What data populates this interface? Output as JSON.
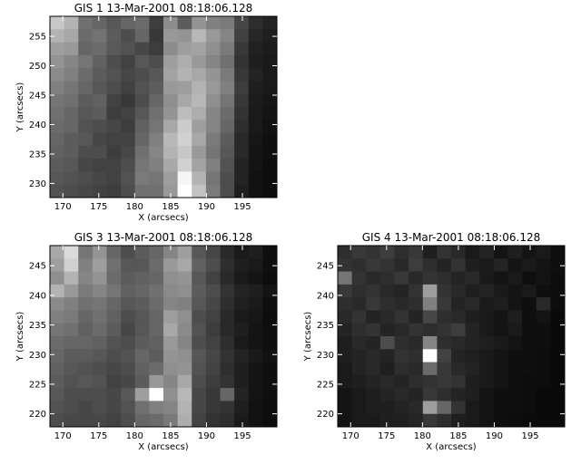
{
  "chart_data": [
    {
      "type": "heatmap",
      "title": "GIS 1 13-Mar-2001 08:18:06.128",
      "xlabel": "X (arcsecs)",
      "ylabel": "Y (arcsecs)",
      "xlim": [
        168.2,
        199.8
      ],
      "ylim": [
        227.6,
        258.4
      ],
      "x_ticks": [
        170,
        175,
        180,
        185,
        190,
        195
      ],
      "y_ticks": [
        230,
        235,
        240,
        245,
        250,
        255
      ],
      "colormap": "grayscale",
      "grid": false,
      "rows": 14,
      "cols": 16,
      "intensity": [
        [
          0.78,
          0.7,
          0.44,
          0.4,
          0.34,
          0.4,
          0.42,
          0.24,
          0.55,
          0.36,
          0.58,
          0.5,
          0.48,
          0.28,
          0.18,
          0.14
        ],
        [
          0.7,
          0.66,
          0.42,
          0.45,
          0.36,
          0.3,
          0.4,
          0.22,
          0.6,
          0.58,
          0.72,
          0.6,
          0.52,
          0.25,
          0.15,
          0.12
        ],
        [
          0.62,
          0.6,
          0.4,
          0.42,
          0.35,
          0.32,
          0.28,
          0.24,
          0.55,
          0.62,
          0.64,
          0.56,
          0.48,
          0.22,
          0.13,
          0.11
        ],
        [
          0.58,
          0.52,
          0.46,
          0.38,
          0.3,
          0.26,
          0.34,
          0.3,
          0.62,
          0.68,
          0.6,
          0.52,
          0.44,
          0.2,
          0.12,
          0.1
        ],
        [
          0.54,
          0.5,
          0.42,
          0.36,
          0.32,
          0.28,
          0.3,
          0.34,
          0.64,
          0.7,
          0.66,
          0.58,
          0.48,
          0.22,
          0.14,
          0.1
        ],
        [
          0.5,
          0.46,
          0.4,
          0.34,
          0.3,
          0.26,
          0.32,
          0.36,
          0.6,
          0.62,
          0.7,
          0.6,
          0.5,
          0.24,
          0.12,
          0.1
        ],
        [
          0.46,
          0.44,
          0.36,
          0.38,
          0.26,
          0.22,
          0.3,
          0.4,
          0.56,
          0.66,
          0.72,
          0.56,
          0.46,
          0.22,
          0.11,
          0.09
        ],
        [
          0.44,
          0.4,
          0.34,
          0.36,
          0.24,
          0.26,
          0.34,
          0.44,
          0.58,
          0.74,
          0.68,
          0.52,
          0.42,
          0.2,
          0.1,
          0.08
        ],
        [
          0.42,
          0.4,
          0.32,
          0.3,
          0.28,
          0.24,
          0.38,
          0.46,
          0.66,
          0.8,
          0.62,
          0.52,
          0.4,
          0.18,
          0.1,
          0.07
        ],
        [
          0.4,
          0.36,
          0.34,
          0.28,
          0.26,
          0.26,
          0.4,
          0.5,
          0.72,
          0.82,
          0.66,
          0.48,
          0.36,
          0.16,
          0.09,
          0.06
        ],
        [
          0.38,
          0.36,
          0.3,
          0.3,
          0.24,
          0.28,
          0.44,
          0.52,
          0.7,
          0.78,
          0.6,
          0.46,
          0.34,
          0.16,
          0.08,
          0.06
        ],
        [
          0.36,
          0.34,
          0.28,
          0.26,
          0.26,
          0.3,
          0.46,
          0.5,
          0.66,
          0.82,
          0.64,
          0.5,
          0.32,
          0.14,
          0.08,
          0.05
        ],
        [
          0.34,
          0.32,
          0.3,
          0.28,
          0.26,
          0.32,
          0.48,
          0.46,
          0.62,
          0.96,
          0.7,
          0.46,
          0.3,
          0.14,
          0.07,
          0.05
        ],
        [
          0.32,
          0.3,
          0.28,
          0.26,
          0.24,
          0.3,
          0.44,
          0.44,
          0.6,
          1.0,
          0.76,
          0.48,
          0.3,
          0.12,
          0.07,
          0.05
        ]
      ]
    },
    {
      "type": "heatmap",
      "title": "GIS 3 13-Mar-2001 08:18:06.128",
      "xlabel": "X (arcsecs)",
      "ylabel": "Y (arcsecs)",
      "xlim": [
        168.2,
        199.8
      ],
      "ylim": [
        217.8,
        248.4
      ],
      "x_ticks": [
        170,
        175,
        180,
        185,
        190,
        195
      ],
      "y_ticks": [
        220,
        225,
        230,
        235,
        240,
        245
      ],
      "colormap": "grayscale",
      "grid": false,
      "rows": 14,
      "cols": 16,
      "intensity": [
        [
          0.66,
          0.86,
          0.46,
          0.58,
          0.4,
          0.3,
          0.36,
          0.4,
          0.52,
          0.62,
          0.34,
          0.28,
          0.16,
          0.1,
          0.12,
          0.06
        ],
        [
          0.62,
          0.82,
          0.5,
          0.62,
          0.44,
          0.34,
          0.34,
          0.42,
          0.6,
          0.66,
          0.38,
          0.3,
          0.18,
          0.12,
          0.1,
          0.06
        ],
        [
          0.56,
          0.7,
          0.52,
          0.58,
          0.42,
          0.36,
          0.38,
          0.4,
          0.56,
          0.58,
          0.34,
          0.26,
          0.16,
          0.1,
          0.08,
          0.05
        ],
        [
          0.7,
          0.6,
          0.48,
          0.52,
          0.46,
          0.38,
          0.4,
          0.44,
          0.54,
          0.56,
          0.36,
          0.3,
          0.2,
          0.14,
          0.12,
          0.08
        ],
        [
          0.54,
          0.5,
          0.44,
          0.46,
          0.4,
          0.34,
          0.36,
          0.42,
          0.52,
          0.5,
          0.34,
          0.28,
          0.18,
          0.12,
          0.1,
          0.06
        ],
        [
          0.5,
          0.48,
          0.4,
          0.44,
          0.38,
          0.3,
          0.34,
          0.4,
          0.62,
          0.56,
          0.3,
          0.26,
          0.16,
          0.1,
          0.09,
          0.05
        ],
        [
          0.46,
          0.44,
          0.38,
          0.42,
          0.36,
          0.28,
          0.34,
          0.4,
          0.66,
          0.54,
          0.32,
          0.24,
          0.16,
          0.12,
          0.08,
          0.06
        ],
        [
          0.42,
          0.4,
          0.4,
          0.38,
          0.32,
          0.3,
          0.36,
          0.38,
          0.6,
          0.52,
          0.3,
          0.26,
          0.18,
          0.1,
          0.08,
          0.06
        ],
        [
          0.4,
          0.36,
          0.36,
          0.34,
          0.3,
          0.32,
          0.4,
          0.36,
          0.58,
          0.56,
          0.34,
          0.28,
          0.2,
          0.14,
          0.1,
          0.07
        ],
        [
          0.38,
          0.34,
          0.32,
          0.3,
          0.28,
          0.3,
          0.38,
          0.42,
          0.56,
          0.58,
          0.32,
          0.26,
          0.18,
          0.12,
          0.08,
          0.06
        ],
        [
          0.36,
          0.32,
          0.34,
          0.32,
          0.26,
          0.28,
          0.36,
          0.6,
          0.52,
          0.66,
          0.3,
          0.24,
          0.2,
          0.12,
          0.08,
          0.06
        ],
        [
          0.34,
          0.3,
          0.3,
          0.3,
          0.28,
          0.34,
          0.62,
          1.0,
          0.56,
          0.72,
          0.28,
          0.22,
          0.4,
          0.14,
          0.08,
          0.06
        ],
        [
          0.32,
          0.3,
          0.28,
          0.3,
          0.28,
          0.32,
          0.44,
          0.5,
          0.52,
          0.7,
          0.28,
          0.22,
          0.2,
          0.12,
          0.07,
          0.05
        ],
        [
          0.3,
          0.28,
          0.28,
          0.28,
          0.26,
          0.3,
          0.4,
          0.42,
          0.48,
          0.68,
          0.26,
          0.2,
          0.18,
          0.1,
          0.07,
          0.05
        ]
      ]
    },
    {
      "type": "heatmap",
      "title": "GIS 4 13-Mar-2001 08:18:06.128",
      "xlabel": "X (arcsecs)",
      "ylabel": "Y (arcsecs)",
      "xlim": [
        168.2,
        199.8
      ],
      "ylim": [
        217.8,
        248.4
      ],
      "x_ticks": [
        170,
        175,
        180,
        185,
        190,
        195
      ],
      "y_ticks": [
        220,
        225,
        230,
        235,
        240,
        245
      ],
      "colormap": "grayscale",
      "grid": false,
      "rows": 14,
      "cols": 16,
      "intensity": [
        [
          0.18,
          0.22,
          0.2,
          0.24,
          0.18,
          0.22,
          0.12,
          0.2,
          0.16,
          0.1,
          0.14,
          0.08,
          0.12,
          0.08,
          0.1,
          0.06
        ],
        [
          0.2,
          0.18,
          0.22,
          0.2,
          0.16,
          0.24,
          0.18,
          0.14,
          0.2,
          0.12,
          0.1,
          0.14,
          0.08,
          0.1,
          0.08,
          0.06
        ],
        [
          0.46,
          0.2,
          0.16,
          0.18,
          0.22,
          0.16,
          0.2,
          0.18,
          0.14,
          0.16,
          0.1,
          0.08,
          0.1,
          0.06,
          0.08,
          0.05
        ],
        [
          0.22,
          0.18,
          0.2,
          0.16,
          0.14,
          0.2,
          0.62,
          0.2,
          0.16,
          0.12,
          0.14,
          0.1,
          0.08,
          0.1,
          0.06,
          0.05
        ],
        [
          0.18,
          0.16,
          0.22,
          0.18,
          0.16,
          0.18,
          0.5,
          0.22,
          0.14,
          0.16,
          0.1,
          0.12,
          0.08,
          0.06,
          0.16,
          0.05
        ],
        [
          0.16,
          0.2,
          0.14,
          0.16,
          0.2,
          0.14,
          0.28,
          0.18,
          0.16,
          0.12,
          0.1,
          0.08,
          0.12,
          0.06,
          0.08,
          0.04
        ],
        [
          0.14,
          0.18,
          0.2,
          0.14,
          0.16,
          0.2,
          0.18,
          0.2,
          0.24,
          0.14,
          0.1,
          0.08,
          0.1,
          0.06,
          0.06,
          0.04
        ],
        [
          0.12,
          0.16,
          0.14,
          0.3,
          0.18,
          0.16,
          0.52,
          0.18,
          0.16,
          0.14,
          0.12,
          0.1,
          0.08,
          0.06,
          0.06,
          0.04
        ],
        [
          0.12,
          0.14,
          0.16,
          0.14,
          0.2,
          0.18,
          1.0,
          0.26,
          0.14,
          0.12,
          0.1,
          0.08,
          0.06,
          0.06,
          0.05,
          0.04
        ],
        [
          0.1,
          0.14,
          0.16,
          0.12,
          0.18,
          0.16,
          0.42,
          0.22,
          0.16,
          0.14,
          0.1,
          0.08,
          0.06,
          0.06,
          0.05,
          0.04
        ],
        [
          0.1,
          0.12,
          0.14,
          0.16,
          0.14,
          0.18,
          0.2,
          0.22,
          0.2,
          0.12,
          0.1,
          0.08,
          0.06,
          0.05,
          0.05,
          0.04
        ],
        [
          0.08,
          0.1,
          0.12,
          0.14,
          0.16,
          0.14,
          0.22,
          0.18,
          0.14,
          0.12,
          0.08,
          0.06,
          0.06,
          0.05,
          0.04,
          0.04
        ],
        [
          0.08,
          0.1,
          0.12,
          0.12,
          0.14,
          0.16,
          0.62,
          0.4,
          0.2,
          0.1,
          0.08,
          0.06,
          0.06,
          0.05,
          0.04,
          0.04
        ],
        [
          0.08,
          0.1,
          0.1,
          0.12,
          0.12,
          0.14,
          0.22,
          0.18,
          0.12,
          0.1,
          0.08,
          0.06,
          0.05,
          0.04,
          0.04,
          0.04
        ]
      ]
    }
  ]
}
